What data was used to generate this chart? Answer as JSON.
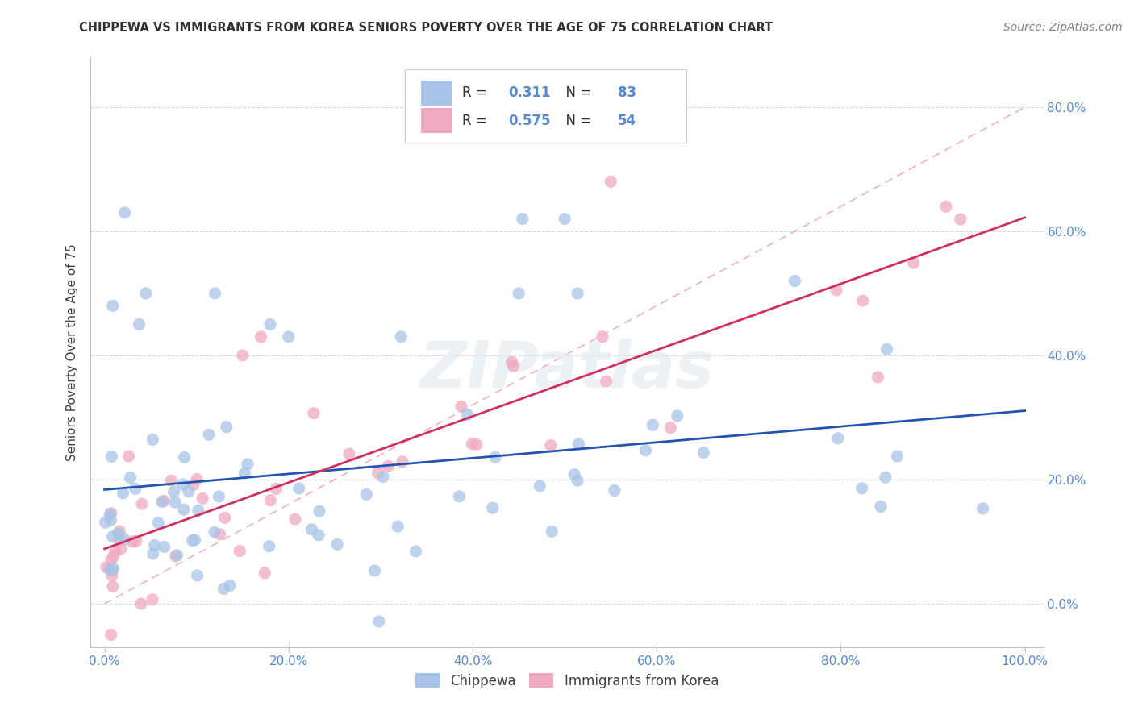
{
  "title": "CHIPPEWA VS IMMIGRANTS FROM KOREA SENIORS POVERTY OVER THE AGE OF 75 CORRELATION CHART",
  "source": "Source: ZipAtlas.com",
  "ylabel": "Seniors Poverty Over the Age of 75",
  "R_chippewa": 0.311,
  "N_chippewa": 83,
  "R_korea": 0.575,
  "N_korea": 54,
  "watermark": "ZIPatlas",
  "chippewa_color": "#a8c4e8",
  "korea_color": "#f0aac0",
  "chippewa_line_color": "#2255b0",
  "korea_line_color": "#d03060",
  "diag_line_color": "#e8b0b8",
  "background_color": "#ffffff",
  "grid_color": "#d8d8d8",
  "tick_color": "#5588cc",
  "title_color": "#303030",
  "ylabel_color": "#404040",
  "source_color": "#808080"
}
